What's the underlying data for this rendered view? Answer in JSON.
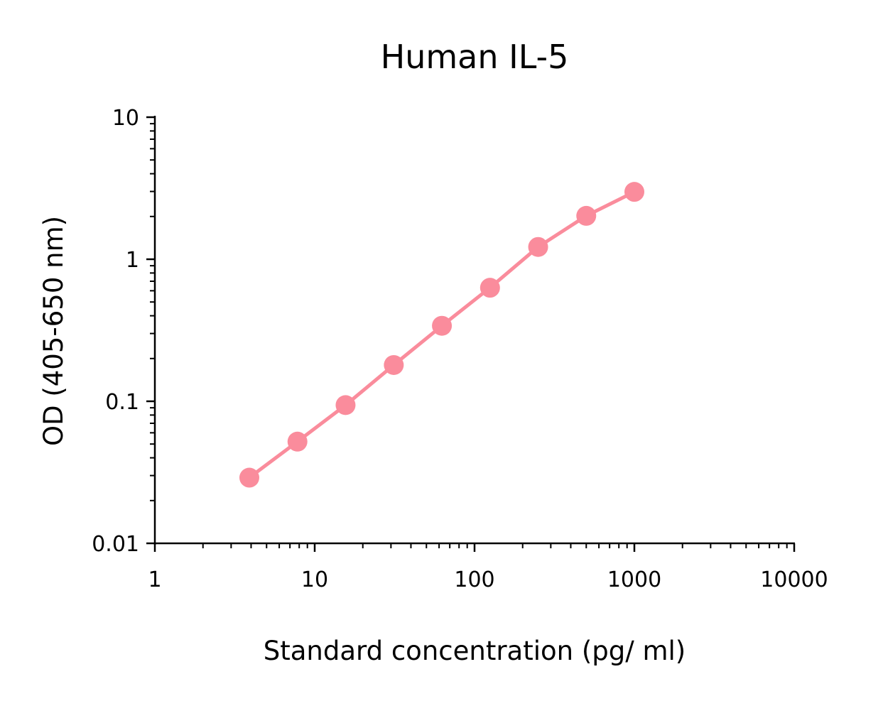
{
  "chart_data": {
    "type": "line",
    "title": "Human IL-5",
    "xlabel": "Standard concentration (pg/ ml)",
    "ylabel": "OD (405-650 nm)",
    "xscale": "log",
    "yscale": "log",
    "xlim": [
      1,
      10000
    ],
    "ylim": [
      0.01,
      10
    ],
    "xticks": [
      1,
      10,
      100,
      1000,
      10000
    ],
    "xtick_labels": [
      "1",
      "10",
      "100",
      "1000",
      "10000"
    ],
    "yticks": [
      0.01,
      0.1,
      1,
      10
    ],
    "ytick_labels": [
      "0.01",
      "0.1",
      "1",
      "10"
    ],
    "grid": false,
    "legend": false,
    "series": [
      {
        "color": "#fa8c9c",
        "x": [
          3.9,
          7.8,
          15.6,
          31.25,
          62.5,
          125,
          250,
          500,
          1000
        ],
        "y": [
          0.029,
          0.052,
          0.094,
          0.18,
          0.34,
          0.63,
          1.22,
          2.02,
          2.98
        ]
      }
    ]
  }
}
